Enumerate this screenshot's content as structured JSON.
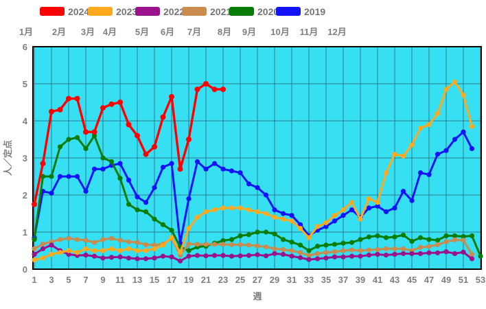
{
  "legend": {
    "items": [
      {
        "label": "2024",
        "color": "#FF0000"
      },
      {
        "label": "2023",
        "color": "#FFA91E"
      },
      {
        "label": "2022",
        "color": "#9C118C"
      },
      {
        "label": "2021",
        "color": "#C98B4E"
      },
      {
        "label": "2020",
        "color": "#077C07"
      },
      {
        "label": "2019",
        "color": "#1212FF"
      }
    ]
  },
  "months": [
    "1月",
    "2月",
    "3月",
    "4月",
    "5月",
    "6月",
    "7月",
    "8月",
    "9月",
    "10月",
    "11月",
    "12月"
  ],
  "chart_data": {
    "type": "line",
    "title": "",
    "xlabel": "週",
    "ylabel": "人／定点",
    "xlim": [
      1,
      53
    ],
    "ylim": [
      0,
      6
    ],
    "grid": true,
    "plot_bg": "#36E0F2",
    "grid_color": "#2C7A8C",
    "x_ticks": [
      1,
      3,
      5,
      7,
      9,
      11,
      13,
      15,
      17,
      19,
      21,
      23,
      25,
      27,
      29,
      31,
      33,
      35,
      37,
      39,
      41,
      43,
      45,
      47,
      49,
      51,
      53
    ],
    "y_ticks": [
      0,
      1,
      2,
      3,
      4,
      5,
      6
    ],
    "x_unit": "week-of-year",
    "series": [
      {
        "name": "2019",
        "color": "#1212FF",
        "start_week": 1,
        "values": [
          0.85,
          2.1,
          2.05,
          2.5,
          2.5,
          2.5,
          2.1,
          2.7,
          2.7,
          2.8,
          2.85,
          2.4,
          1.95,
          1.8,
          2.2,
          2.75,
          2.85,
          0.7,
          1.9,
          2.9,
          2.7,
          2.85,
          2.7,
          2.65,
          2.6,
          2.3,
          2.2,
          2.0,
          1.6,
          1.5,
          1.45,
          1.2,
          0.9,
          1.05,
          1.15,
          1.3,
          1.45,
          1.6,
          1.4,
          1.65,
          1.7,
          1.55,
          1.65,
          2.1,
          1.85,
          2.6,
          2.55,
          3.1,
          3.2,
          3.5,
          3.7,
          3.25
        ]
      },
      {
        "name": "2020",
        "color": "#077C07",
        "start_week": 1,
        "values": [
          0.8,
          2.5,
          2.5,
          3.3,
          3.5,
          3.55,
          3.25,
          3.6,
          3.0,
          2.9,
          2.45,
          1.75,
          1.6,
          1.55,
          1.35,
          1.2,
          1.05,
          0.6,
          0.5,
          0.6,
          0.62,
          0.7,
          0.77,
          0.8,
          0.9,
          0.93,
          1.0,
          1.0,
          0.95,
          0.8,
          0.73,
          0.65,
          0.5,
          0.62,
          0.65,
          0.67,
          0.7,
          0.72,
          0.8,
          0.87,
          0.9,
          0.85,
          0.87,
          0.92,
          0.75,
          0.85,
          0.8,
          0.78,
          0.9,
          0.9,
          0.88,
          0.9,
          0.35
        ]
      },
      {
        "name": "2021",
        "color": "#C98B4E",
        "start_week": 1,
        "values": [
          0.55,
          0.68,
          0.74,
          0.8,
          0.83,
          0.8,
          0.78,
          0.72,
          0.8,
          0.83,
          0.78,
          0.74,
          0.72,
          0.66,
          0.65,
          0.68,
          0.83,
          0.38,
          0.68,
          0.67,
          0.67,
          0.67,
          0.67,
          0.66,
          0.66,
          0.65,
          0.63,
          0.6,
          0.55,
          0.53,
          0.5,
          0.45,
          0.37,
          0.42,
          0.45,
          0.47,
          0.5,
          0.52,
          0.5,
          0.52,
          0.53,
          0.55,
          0.55,
          0.55,
          0.5,
          0.59,
          0.61,
          0.66,
          0.74,
          0.79,
          0.78,
          0.4
        ]
      },
      {
        "name": "2022",
        "color": "#9C118C",
        "start_week": 1,
        "values": [
          0.4,
          0.55,
          0.65,
          0.5,
          0.4,
          0.37,
          0.38,
          0.35,
          0.3,
          0.32,
          0.33,
          0.3,
          0.28,
          0.28,
          0.3,
          0.35,
          0.33,
          0.22,
          0.35,
          0.37,
          0.36,
          0.37,
          0.37,
          0.35,
          0.36,
          0.37,
          0.39,
          0.36,
          0.42,
          0.4,
          0.35,
          0.31,
          0.26,
          0.28,
          0.3,
          0.33,
          0.33,
          0.35,
          0.35,
          0.38,
          0.4,
          0.38,
          0.4,
          0.42,
          0.42,
          0.42,
          0.44,
          0.44,
          0.47,
          0.42,
          0.46,
          0.28
        ]
      },
      {
        "name": "2023",
        "color": "#FFA91E",
        "start_week": 1,
        "values": [
          0.25,
          0.3,
          0.4,
          0.45,
          0.5,
          0.45,
          0.55,
          0.5,
          0.5,
          0.55,
          0.5,
          0.55,
          0.5,
          0.5,
          0.55,
          0.65,
          0.85,
          0.45,
          1.1,
          1.4,
          1.55,
          1.6,
          1.65,
          1.65,
          1.65,
          1.6,
          1.55,
          1.5,
          1.4,
          1.35,
          1.3,
          1.1,
          0.85,
          1.15,
          1.25,
          1.45,
          1.6,
          1.8,
          1.35,
          1.9,
          1.8,
          2.6,
          3.1,
          3.05,
          3.35,
          3.8,
          3.9,
          4.2,
          4.85,
          5.05,
          4.7,
          3.85
        ]
      },
      {
        "name": "2024",
        "color": "#FF0000",
        "start_week": 1,
        "values": [
          1.75,
          2.85,
          4.25,
          4.3,
          4.6,
          4.6,
          3.7,
          3.7,
          4.35,
          4.45,
          4.5,
          3.9,
          3.6,
          3.1,
          3.3,
          4.1,
          4.65,
          2.7,
          3.5,
          4.85,
          5.0,
          4.85,
          4.85
        ]
      }
    ]
  }
}
